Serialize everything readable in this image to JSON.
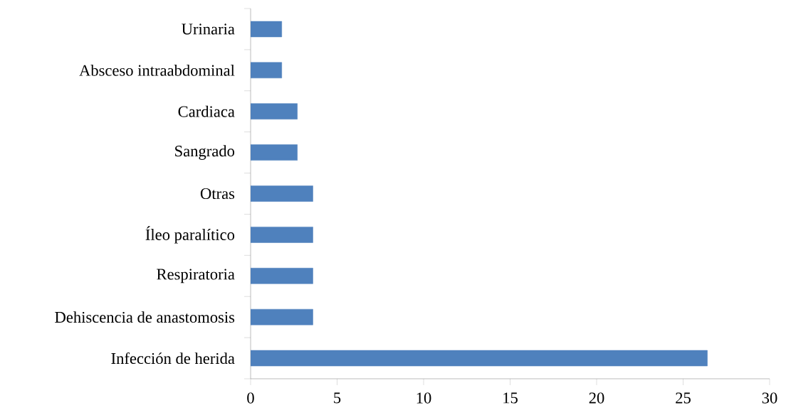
{
  "chart_data": {
    "type": "bar",
    "orientation": "horizontal",
    "categories": [
      "Urinaria",
      "Absceso intraabdominal",
      "Cardiaca",
      "Sangrado",
      "Otras",
      "Íleo paralítico",
      "Respiratoria",
      "Dehiscencia de anastomosis",
      "Infección de herida"
    ],
    "values": [
      1.8,
      1.8,
      2.7,
      2.7,
      3.6,
      3.6,
      3.6,
      3.6,
      26.4
    ],
    "color": "#4f81bd",
    "xlim": [
      0,
      30
    ],
    "xticks": [
      0,
      5,
      10,
      15,
      20,
      25,
      30
    ]
  }
}
